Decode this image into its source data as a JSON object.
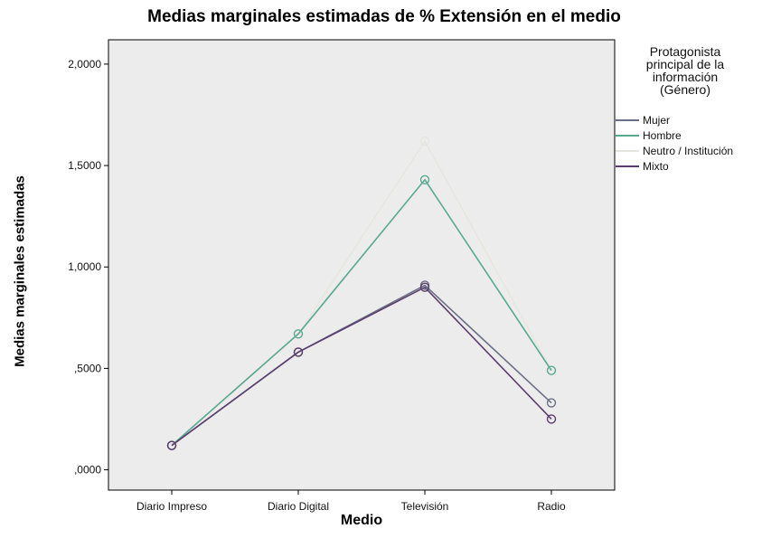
{
  "chart_data": {
    "type": "line",
    "title": "Medias marginales estimadas de % Extensión en el medio",
    "xlabel": "Medio",
    "ylabel": "Medias marginales estimadas",
    "categories": [
      "Diario Impreso",
      "Diario Digital",
      "Televisión",
      "Radio"
    ],
    "ylim": [
      -0.1,
      2.12
    ],
    "yticks": [
      0,
      0.5,
      1.0,
      1.5,
      2.0
    ],
    "ytick_labels": [
      ",0000",
      ",5000",
      "1,0000",
      "1,5000",
      "2,0000"
    ],
    "grid": false,
    "legend_placement": "right",
    "legend_title": [
      "Protagonista",
      "principal de la",
      "información",
      "(Género)"
    ],
    "series": [
      {
        "name": "Mujer",
        "color": "#6b6f84",
        "values": [
          0.12,
          0.58,
          0.91,
          0.33
        ]
      },
      {
        "name": "Hombre",
        "color": "#5aa890",
        "values": [
          0.12,
          0.67,
          1.43,
          0.49
        ]
      },
      {
        "name": "Neutro / Institución",
        "color": "#e6e6e0",
        "values": [
          0.12,
          0.67,
          1.62,
          0.49
        ]
      },
      {
        "name": "Mixto",
        "color": "#5a3f6c",
        "values": [
          0.12,
          0.58,
          0.9,
          0.25
        ]
      }
    ],
    "plot_background": "#ececec"
  }
}
